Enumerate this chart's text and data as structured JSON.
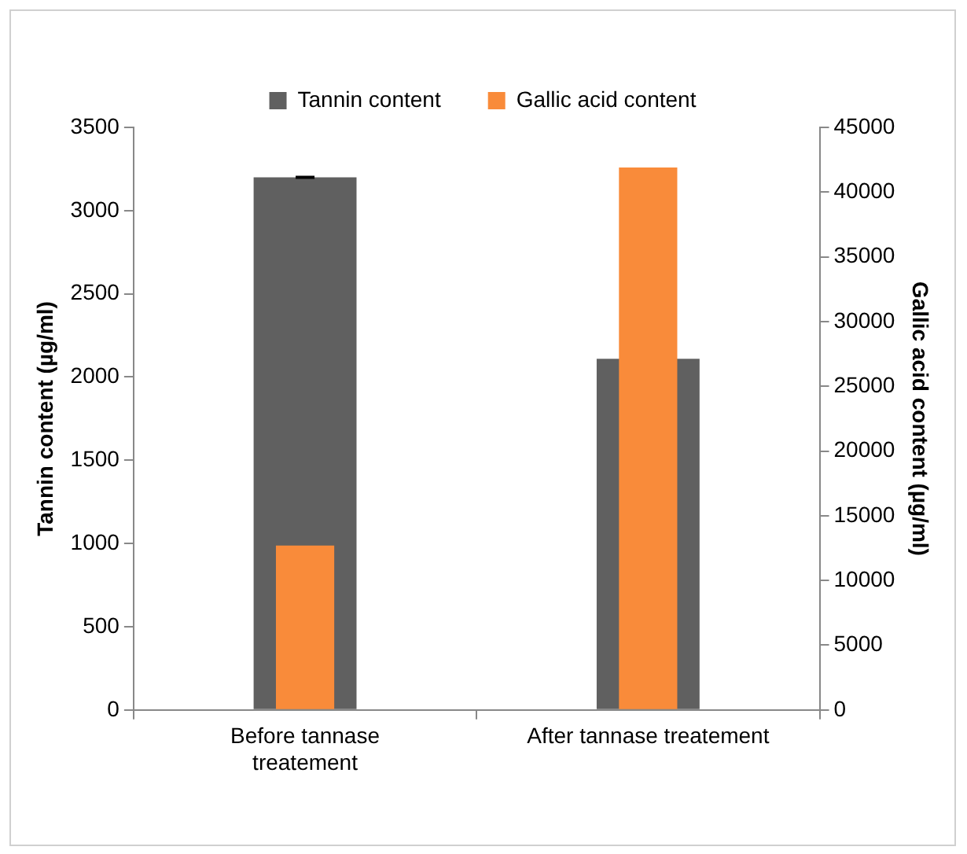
{
  "chart_data": {
    "type": "bar",
    "categories": [
      "Before tannase treatement",
      "After tannase treatement"
    ],
    "series": [
      {
        "name": "Tannin content",
        "color": "#606060",
        "values": [
          3200,
          2110
        ],
        "errors": [
          5,
          null
        ]
      },
      {
        "name": "Gallic acid content",
        "color": "#f98b3a",
        "values": [
          12700,
          41900
        ],
        "axis": "y2"
      }
    ],
    "ylabel": "Tannin content (µg/ml)",
    "y2label": "Gallic acid content (µg/ml)",
    "ylim": [
      0,
      3500
    ],
    "yticks": [
      0,
      500,
      1000,
      1500,
      2000,
      2500,
      3000,
      3500
    ],
    "y2lim": [
      0,
      45000
    ],
    "y2ticks": [
      0,
      5000,
      10000,
      15000,
      20000,
      25000,
      30000,
      35000,
      40000,
      45000
    ],
    "legend": "top",
    "grid": false
  }
}
